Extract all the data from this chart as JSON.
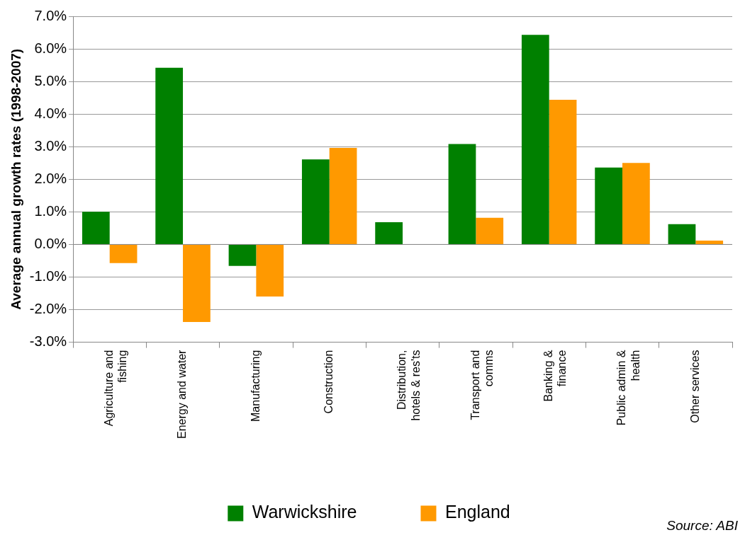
{
  "chart_data": {
    "type": "bar",
    "ylabel": "Average annual growth rates (1998-2007)",
    "categories": [
      "Agriculture and fishing",
      "Energy and water",
      "Manufacturing",
      "Construction",
      "Distribution, hotels & res'ts",
      "Transport and comms",
      "Banking & finance",
      "Public admin & health",
      "Other services"
    ],
    "series": [
      {
        "name": "Warwickshire",
        "color": "#008000",
        "values": [
          1.0,
          5.42,
          -0.66,
          2.61,
          0.68,
          3.08,
          6.43,
          2.36,
          0.62
        ]
      },
      {
        "name": "England",
        "color": "#ff9900",
        "values": [
          -0.57,
          -2.38,
          -1.6,
          2.96,
          0.0,
          0.82,
          4.44,
          2.5,
          0.12
        ]
      }
    ],
    "ylim": [
      -3,
      7
    ],
    "yticks": [
      {
        "value": -3,
        "label": "-3.0%"
      },
      {
        "value": -2,
        "label": "-2.0%"
      },
      {
        "value": -1,
        "label": "-1.0%"
      },
      {
        "value": 0,
        "label": "0.0%"
      },
      {
        "value": 1,
        "label": "1.0%"
      },
      {
        "value": 2,
        "label": "2.0%"
      },
      {
        "value": 3,
        "label": "3.0%"
      },
      {
        "value": 4,
        "label": "4.0%"
      },
      {
        "value": 5,
        "label": "5.0%"
      },
      {
        "value": 6,
        "label": "6.0%"
      },
      {
        "value": 7,
        "label": "7.0%"
      }
    ],
    "grid": "y",
    "legend": "bottom",
    "annotations": [
      "Source: ABI"
    ]
  }
}
